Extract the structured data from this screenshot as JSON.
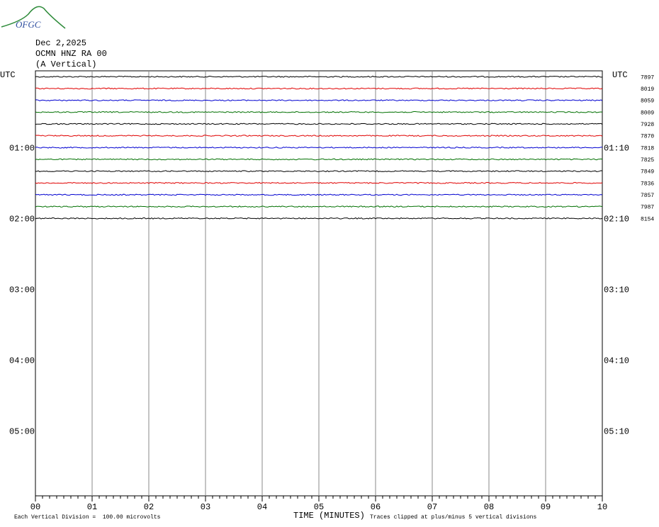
{
  "logo": "OFGC",
  "header": {
    "date": "Dec 2,2025",
    "station": "OCMN HNZ RA 00",
    "component": "(A Vertical)"
  },
  "utc_left": "UTC",
  "utc_right": "UTC",
  "hours": [
    {
      "left": "01:00",
      "right": "01:10"
    },
    {
      "left": "02:00",
      "right": "02:10"
    },
    {
      "left": "03:00",
      "right": "03:10"
    },
    {
      "left": "04:00",
      "right": "04:10"
    },
    {
      "left": "05:00",
      "right": "05:10"
    }
  ],
  "traces": [
    {
      "color": "#000000",
      "level": "7897"
    },
    {
      "color": "#e00000",
      "level": "8019"
    },
    {
      "color": "#0000d0",
      "level": "8059"
    },
    {
      "color": "#007000",
      "level": "8009"
    },
    {
      "color": "#000000",
      "level": "7928"
    },
    {
      "color": "#e00000",
      "level": "7870"
    },
    {
      "color": "#0000d0",
      "level": "7818"
    },
    {
      "color": "#007000",
      "level": "7825"
    },
    {
      "color": "#000000",
      "level": "7849"
    },
    {
      "color": "#e00000",
      "level": "7836"
    },
    {
      "color": "#0000d0",
      "level": "7857"
    },
    {
      "color": "#007000",
      "level": "7987"
    },
    {
      "color": "#000000",
      "level": "8154"
    }
  ],
  "x_ticks": [
    "00",
    "01",
    "02",
    "03",
    "04",
    "05",
    "06",
    "07",
    "08",
    "09",
    "10"
  ],
  "x_label": "TIME (MINUTES)",
  "footer_left": "Each Vertical Division =  100.00 microvolts",
  "footer_right": "Traces clipped at plus/minus 5 vertical divisions"
}
